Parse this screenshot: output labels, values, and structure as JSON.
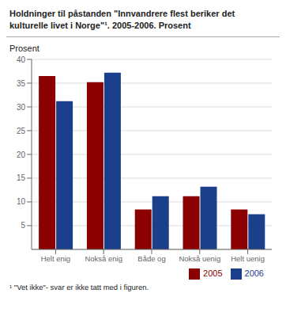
{
  "chart_data": {
    "type": "bar",
    "title": "Holdninger til påstanden \"Innvandrere flest beriker det\nkulturelle livet i Norge\"¹. 2005-2006. Prosent",
    "ylabel": "Prosent",
    "categories": [
      "Helt enig",
      "Nokså enig",
      "Både og",
      "Nokså uenig",
      "Helt uenig"
    ],
    "series": [
      {
        "name": "2005",
        "color": "#8B0000",
        "values": [
          36.5,
          35.2,
          8.4,
          11.2,
          8.4
        ]
      },
      {
        "name": "2006",
        "color": "#1C3F8C",
        "values": [
          31.2,
          37.2,
          11.2,
          13.2,
          7.4
        ]
      }
    ],
    "ylim": [
      0,
      40
    ],
    "yticks": [
      5,
      10,
      15,
      20,
      25,
      30,
      35,
      40
    ],
    "grid": true,
    "legend": "bottom",
    "annotations": [
      "¹ \"Vet ikke\"- svar er ikke tatt med i figuren."
    ]
  }
}
